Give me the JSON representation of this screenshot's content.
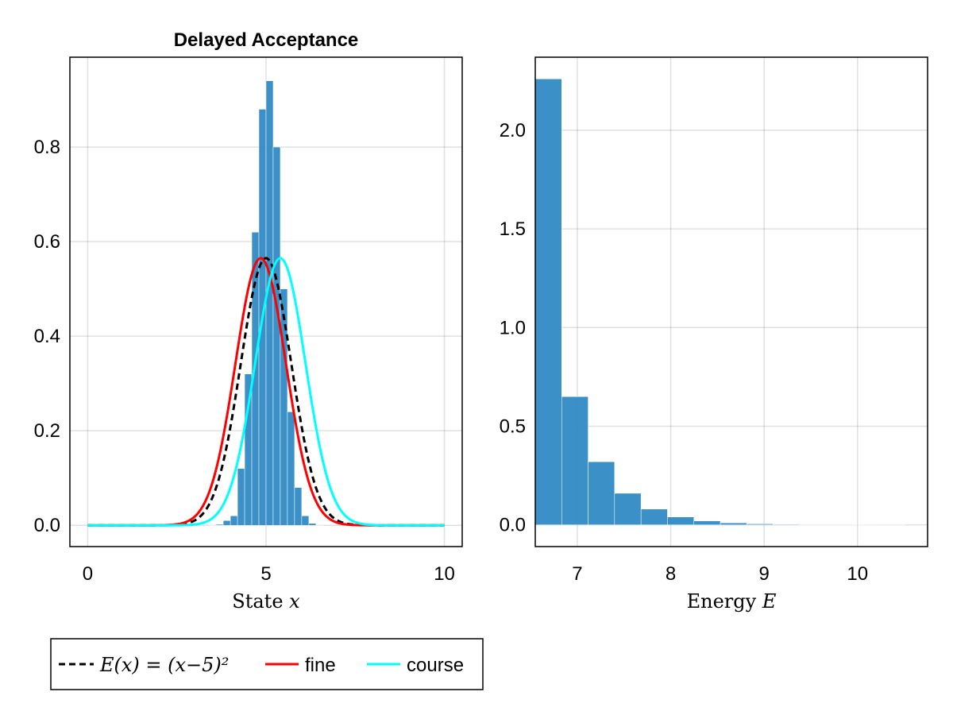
{
  "colors": {
    "histogram": "#2f8ac4",
    "energy_curve": "#000000",
    "fine": "#ff0000",
    "course": "#00ffff"
  },
  "chart_data": [
    {
      "type": "bar",
      "title": "Delayed Acceptance",
      "xlabel_text": "State",
      "xlabel_var": "x",
      "ylabel": "",
      "xlim": [
        -0.5,
        10.5
      ],
      "ylim": [
        -0.045,
        0.99
      ],
      "xticks": [
        "0",
        "5",
        "10"
      ],
      "xtick_values": [
        0,
        5,
        10
      ],
      "yticks": [
        "0.0",
        "0.2",
        "0.4",
        "0.6",
        "0.8"
      ],
      "ytick_values": [
        0,
        0.2,
        0.4,
        0.6,
        0.8
      ],
      "grid": true,
      "histogram": {
        "bin_width": 0.2,
        "bin_edges": [
          3.4,
          3.6,
          3.8,
          4.0,
          4.2,
          4.4,
          4.6,
          4.8,
          5.0,
          5.2,
          5.4,
          5.6,
          5.8,
          6.0,
          6.2,
          6.4,
          6.6
        ],
        "values": [
          0.001,
          0.002,
          0.01,
          0.02,
          0.12,
          0.32,
          0.62,
          0.88,
          0.94,
          0.8,
          0.5,
          0.24,
          0.08,
          0.02,
          0.004,
          0.001
        ]
      },
      "series": [
        {
          "name": "E(x) = (x−5)²",
          "kind": "dashed",
          "mean": 5.0,
          "sd": 0.707,
          "peak": 0.565
        },
        {
          "name": "fine",
          "kind": "solid",
          "mean": 4.85,
          "sd": 0.707,
          "peak": 0.565
        },
        {
          "name": "course",
          "kind": "solid",
          "mean": 5.4,
          "sd": 0.707,
          "peak": 0.565
        }
      ]
    },
    {
      "type": "bar",
      "title": "",
      "xlabel_text": "Energy",
      "xlabel_var": "E",
      "ylabel": "",
      "xlim": [
        6.55,
        10.75
      ],
      "ylim": [
        -0.11,
        2.37
      ],
      "xticks": [
        "7",
        "8",
        "9",
        "10"
      ],
      "xtick_values": [
        7,
        8,
        9,
        10
      ],
      "yticks": [
        "0.0",
        "0.5",
        "1.0",
        "1.5",
        "2.0"
      ],
      "ytick_values": [
        0,
        0.5,
        1.0,
        1.5,
        2.0
      ],
      "grid": true,
      "histogram": {
        "bin_width": 0.283,
        "bin_edges": [
          6.55,
          6.833,
          7.116,
          7.399,
          7.682,
          7.965,
          8.248,
          8.531,
          8.814,
          9.097,
          9.38,
          9.663,
          9.946,
          10.229,
          10.512
        ],
        "values": [
          2.26,
          0.65,
          0.32,
          0.16,
          0.08,
          0.04,
          0.02,
          0.01,
          0.005,
          0.003,
          0.001,
          0.001,
          0.0005,
          0.0003
        ]
      }
    }
  ],
  "legend": {
    "entries": [
      {
        "label_math": "E(x) = (x−5)²",
        "style": "dashed"
      },
      {
        "label": "fine",
        "style": "solid"
      },
      {
        "label": "course",
        "style": "solid"
      }
    ]
  }
}
